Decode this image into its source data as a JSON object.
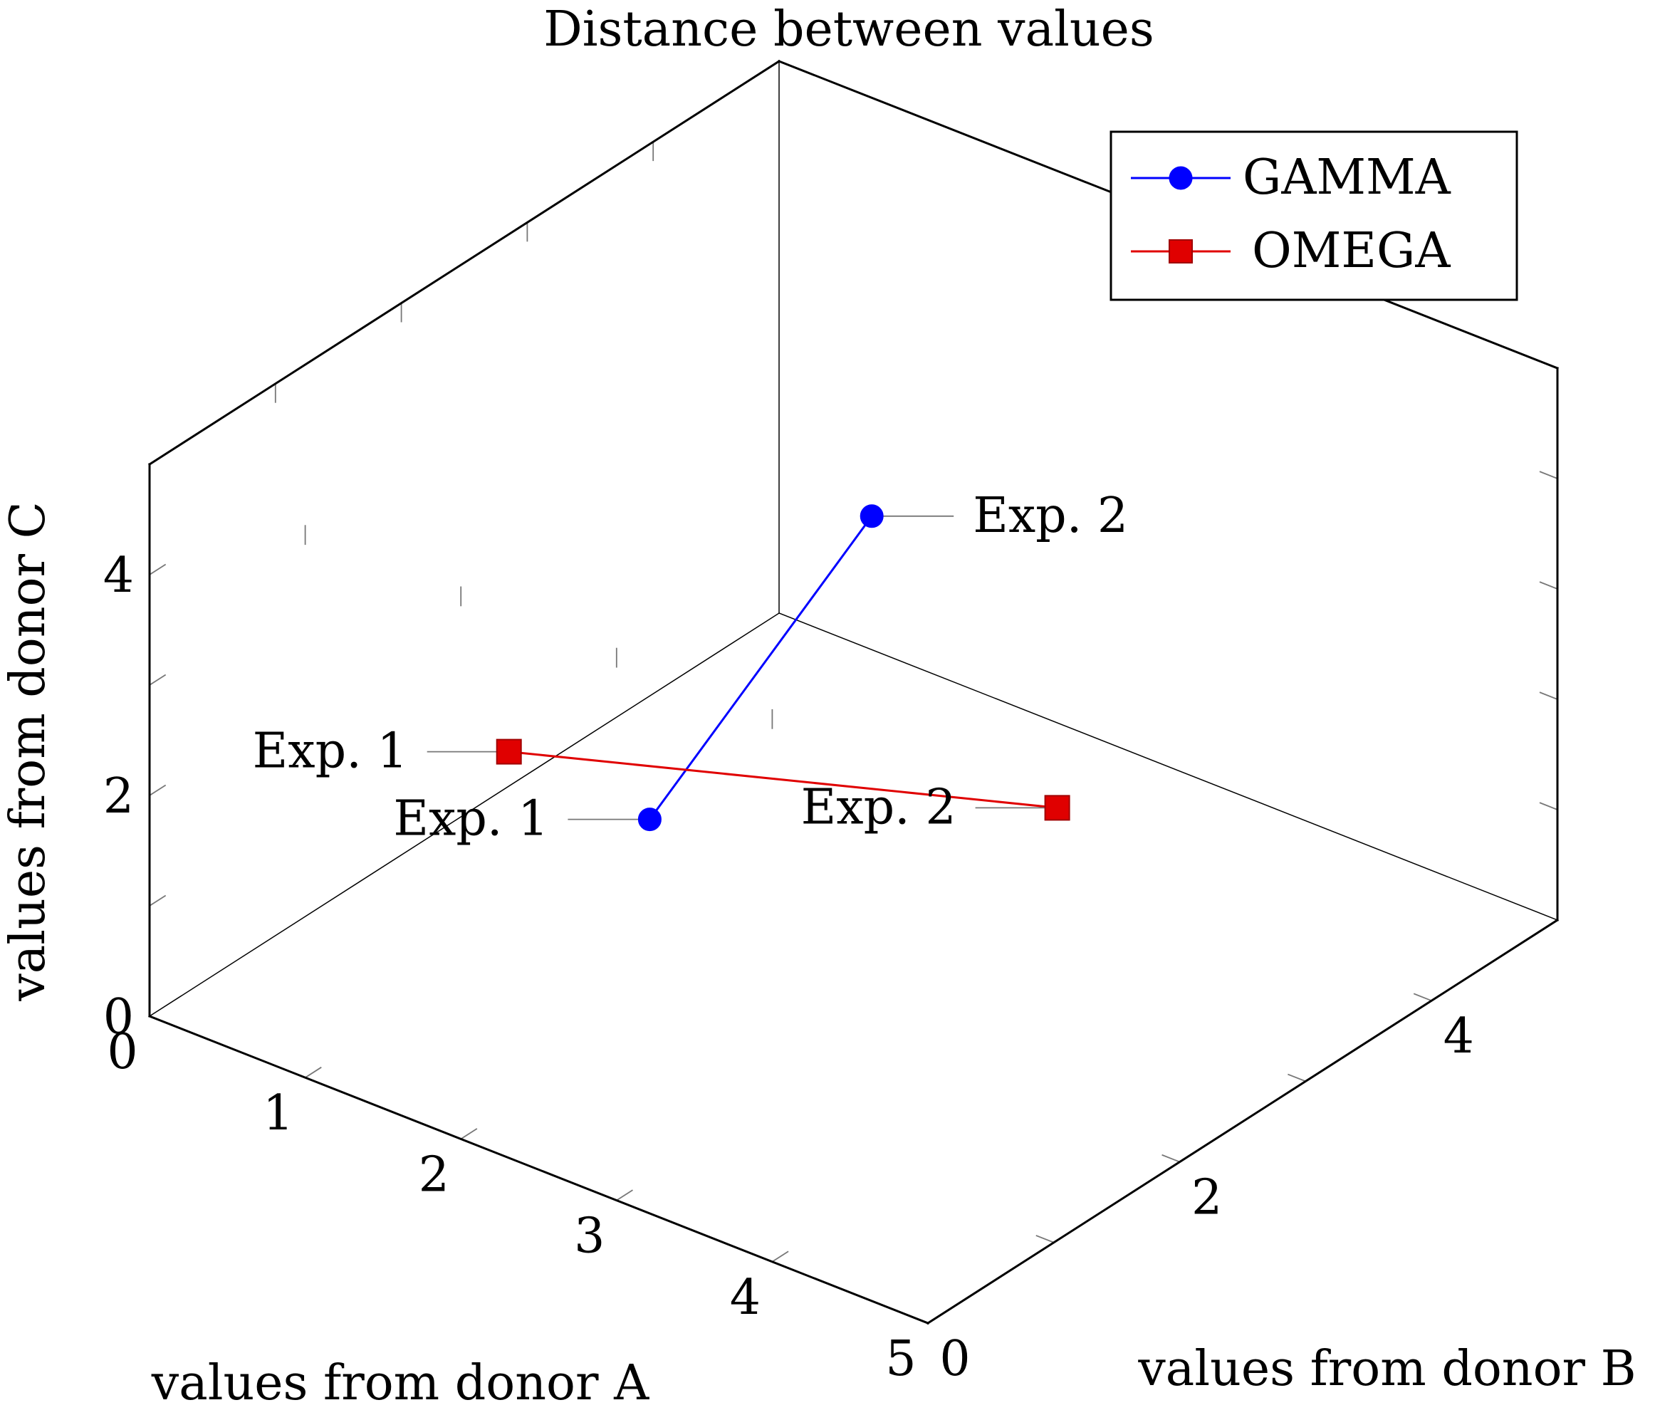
{
  "chart_data": {
    "type": "scatter3d",
    "title": "Distance between values",
    "xlabel": "values from donor A",
    "ylabel": "values from donor B",
    "zlabel": "values from donor C",
    "xlim": [
      0,
      5
    ],
    "ylim": [
      0,
      5
    ],
    "zlim": [
      0,
      5
    ],
    "x_ticks": [
      "0",
      "1",
      "2",
      "3",
      "4",
      "5"
    ],
    "y_ticks": [
      "0",
      "2",
      "4"
    ],
    "z_ticks": [
      "0",
      "2",
      "4"
    ],
    "legend_position": "top-right",
    "series": [
      {
        "name": "GAMMA",
        "color": "#0000ff",
        "marker": "circle",
        "points": [
          {
            "x": 2.0,
            "y": 1.5,
            "z": 1.8,
            "label": "Exp. 1"
          },
          {
            "x": 1.0,
            "y": 4.5,
            "z": 1.8,
            "label": "Exp. 2"
          }
        ]
      },
      {
        "name": "OMEGA",
        "color": "#e00000",
        "marker": "square",
        "points": [
          {
            "x": 1.5,
            "y": 1.0,
            "z": 2.5,
            "label": "Exp. 1"
          },
          {
            "x": 3.0,
            "y": 3.5,
            "z": 1.0,
            "label": "Exp. 2"
          }
        ]
      }
    ]
  }
}
